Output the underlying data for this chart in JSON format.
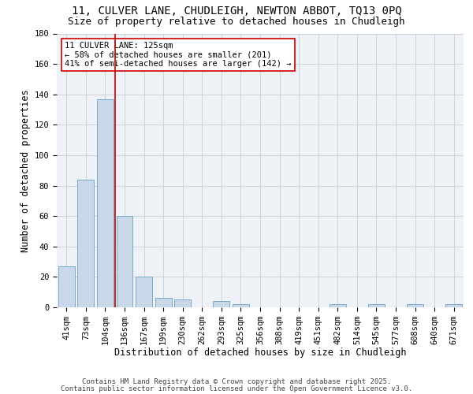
{
  "title_line1": "11, CULVER LANE, CHUDLEIGH, NEWTON ABBOT, TQ13 0PQ",
  "title_line2": "Size of property relative to detached houses in Chudleigh",
  "xlabel": "Distribution of detached houses by size in Chudleigh",
  "ylabel": "Number of detached properties",
  "categories": [
    "41sqm",
    "73sqm",
    "104sqm",
    "136sqm",
    "167sqm",
    "199sqm",
    "230sqm",
    "262sqm",
    "293sqm",
    "325sqm",
    "356sqm",
    "388sqm",
    "419sqm",
    "451sqm",
    "482sqm",
    "514sqm",
    "545sqm",
    "577sqm",
    "608sqm",
    "640sqm",
    "671sqm"
  ],
  "values": [
    27,
    84,
    137,
    60,
    20,
    6,
    5,
    0,
    4,
    2,
    0,
    0,
    0,
    0,
    2,
    0,
    2,
    0,
    2,
    0,
    2
  ],
  "bar_color": "#c8d8e8",
  "bar_edge_color": "#7aaac8",
  "vline_x_index": 2.5,
  "vline_color": "#cc0000",
  "annotation_line1": "11 CULVER LANE: 125sqm",
  "annotation_line2": "← 58% of detached houses are smaller (201)",
  "annotation_line3": "41% of semi-detached houses are larger (142) →",
  "annotation_box_color": "#ffffff",
  "annotation_box_edge": "#cc0000",
  "yticks": [
    0,
    20,
    40,
    60,
    80,
    100,
    120,
    140,
    160,
    180
  ],
  "ylim": [
    0,
    180
  ],
  "footer_line1": "Contains HM Land Registry data © Crown copyright and database right 2025.",
  "footer_line2": "Contains public sector information licensed under the Open Government Licence v3.0.",
  "background_color": "#eef2f7",
  "grid_color": "#c8ccd4",
  "title_fontsize": 10,
  "subtitle_fontsize": 9,
  "axis_label_fontsize": 8.5,
  "tick_fontsize": 7.5,
  "footer_fontsize": 6.5,
  "annotation_fontsize": 7.5
}
